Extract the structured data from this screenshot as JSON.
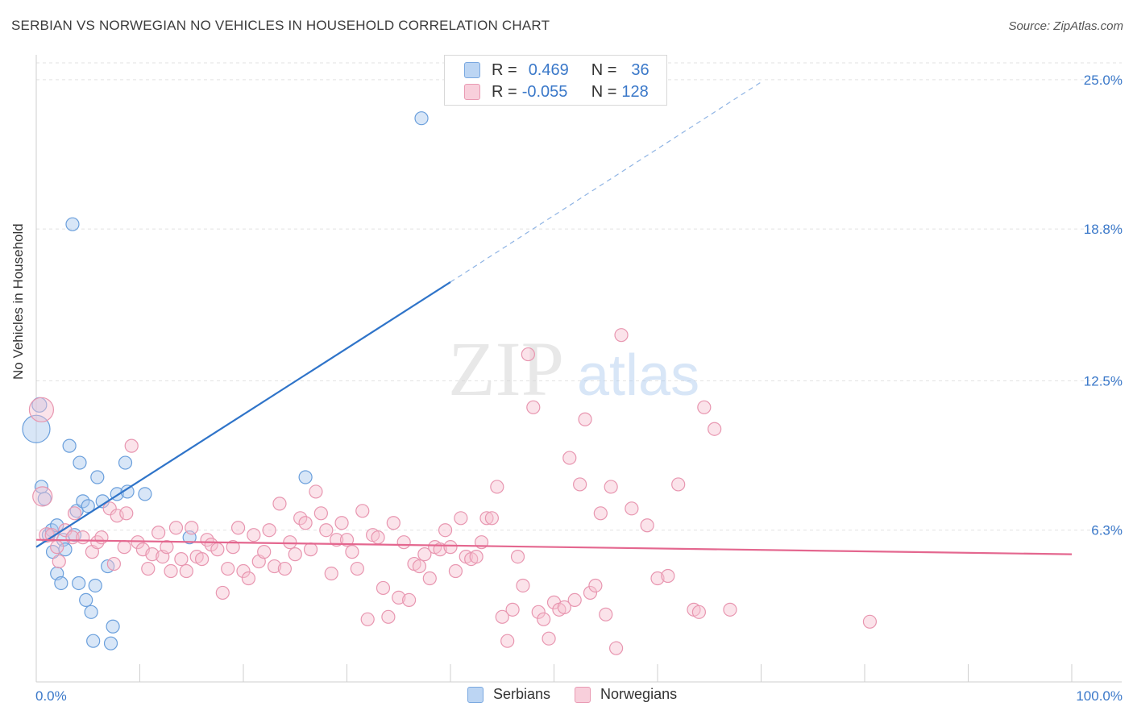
{
  "title": "SERBIAN VS NORWEGIAN NO VEHICLES IN HOUSEHOLD CORRELATION CHART",
  "source": "Source: ZipAtlas.com",
  "watermark": {
    "zip": "ZIP",
    "atlas": "atlas"
  },
  "legend_top": [
    {
      "r_label": "R =",
      "r_value": "0.469",
      "n_label": "N =",
      "n_value": "36",
      "color": "#a9c8ee",
      "border": "#7aa8e0"
    },
    {
      "r_label": "R =",
      "r_value": "-0.055",
      "n_label": "N =",
      "n_value": "128",
      "color": "#f6c0d0",
      "border": "#e99ab3"
    }
  ],
  "legend_bottom": [
    {
      "label": "Serbians",
      "color": "#bcd5f3",
      "border": "#7aa8e0"
    },
    {
      "label": "Norwegians",
      "color": "#f8cfdb",
      "border": "#e99ab3"
    }
  ],
  "chart_data": {
    "type": "scatter",
    "title": "SERBIAN VS NORWEGIAN NO VEHICLES IN HOUSEHOLD CORRELATION CHART",
    "xlabel": "",
    "ylabel": "No Vehicles in Household",
    "xlim": [
      0,
      100
    ],
    "ylim": [
      0,
      25.9
    ],
    "x_tick_labels": [
      {
        "value": 0,
        "label": "0.0%"
      },
      {
        "value": 100,
        "label": "100.0%"
      }
    ],
    "y_tick_labels": [
      {
        "value": 6.3,
        "label": "6.3%"
      },
      {
        "value": 12.5,
        "label": "12.5%"
      },
      {
        "value": 18.8,
        "label": "18.8%"
      },
      {
        "value": 25.0,
        "label": "25.0%"
      }
    ],
    "series": [
      {
        "name": "Serbians",
        "color": "#a9c8ee",
        "stroke": "#6a9fdc",
        "trend": {
          "x0": 0,
          "y0": 5.6,
          "x1": 40,
          "y1": 16.6,
          "dash_to_x": 70,
          "dash_to_y": 24.9,
          "color": "#2f74c9"
        },
        "points": [
          [
            0,
            10.5,
            34
          ],
          [
            0.3,
            11.5,
            18
          ],
          [
            0.5,
            8.1,
            16
          ],
          [
            0.8,
            7.6,
            16
          ],
          [
            1.2,
            6.1,
            16
          ],
          [
            1.5,
            6.3,
            16
          ],
          [
            1.6,
            5.4,
            16
          ],
          [
            2.0,
            6.5,
            16
          ],
          [
            2.0,
            4.5,
            16
          ],
          [
            2.4,
            4.1,
            16
          ],
          [
            2.6,
            5.9,
            16
          ],
          [
            2.8,
            5.5,
            16
          ],
          [
            3.2,
            9.8,
            16
          ],
          [
            3.5,
            19.0,
            16
          ],
          [
            3.7,
            6.1,
            16
          ],
          [
            3.9,
            7.1,
            16
          ],
          [
            4.1,
            4.1,
            16
          ],
          [
            4.2,
            9.1,
            16
          ],
          [
            4.5,
            7.5,
            16
          ],
          [
            4.8,
            3.4,
            16
          ],
          [
            5.0,
            7.3,
            16
          ],
          [
            5.3,
            2.9,
            16
          ],
          [
            5.5,
            1.7,
            16
          ],
          [
            5.7,
            4.0,
            16
          ],
          [
            5.9,
            8.5,
            16
          ],
          [
            6.4,
            7.5,
            16
          ],
          [
            6.9,
            4.8,
            16
          ],
          [
            7.2,
            1.6,
            16
          ],
          [
            7.4,
            2.3,
            16
          ],
          [
            7.8,
            7.8,
            16
          ],
          [
            8.6,
            9.1,
            16
          ],
          [
            8.8,
            7.9,
            16
          ],
          [
            10.5,
            7.8,
            16
          ],
          [
            14.8,
            6.0,
            16
          ],
          [
            26.0,
            8.5,
            16
          ],
          [
            37.2,
            23.4,
            16
          ]
        ]
      },
      {
        "name": "Norwegians",
        "color": "#f6c0d0",
        "stroke": "#e896b0",
        "trend": {
          "x0": 0,
          "y0": 5.9,
          "x1": 100,
          "y1": 5.3,
          "color": "#e4678f"
        },
        "points": [
          [
            0.5,
            11.3,
            30
          ],
          [
            0.6,
            7.7,
            24
          ],
          [
            1.0,
            6.1,
            18
          ],
          [
            1.5,
            6.1,
            16
          ],
          [
            2.0,
            5.6,
            16
          ],
          [
            2.2,
            5.0,
            16
          ],
          [
            2.8,
            6.3,
            16
          ],
          [
            3.5,
            6.0,
            16
          ],
          [
            3.7,
            7.0,
            16
          ],
          [
            4.5,
            6.0,
            16
          ],
          [
            5.4,
            5.4,
            16
          ],
          [
            5.9,
            5.8,
            16
          ],
          [
            6.3,
            6.0,
            16
          ],
          [
            7.1,
            7.2,
            16
          ],
          [
            7.5,
            4.9,
            16
          ],
          [
            7.8,
            6.9,
            16
          ],
          [
            8.5,
            5.6,
            16
          ],
          [
            8.7,
            7.0,
            16
          ],
          [
            9.2,
            9.8,
            16
          ],
          [
            9.8,
            5.8,
            16
          ],
          [
            10.3,
            5.5,
            16
          ],
          [
            10.8,
            4.7,
            16
          ],
          [
            11.2,
            5.3,
            16
          ],
          [
            11.8,
            6.2,
            16
          ],
          [
            12.2,
            5.2,
            16
          ],
          [
            12.6,
            5.6,
            16
          ],
          [
            13.0,
            4.6,
            16
          ],
          [
            13.5,
            6.4,
            16
          ],
          [
            14.0,
            5.1,
            16
          ],
          [
            14.5,
            4.6,
            16
          ],
          [
            15.0,
            6.4,
            16
          ],
          [
            15.5,
            5.2,
            16
          ],
          [
            16.0,
            5.1,
            16
          ],
          [
            16.5,
            5.9,
            16
          ],
          [
            16.9,
            5.7,
            16
          ],
          [
            17.5,
            5.5,
            16
          ],
          [
            18.0,
            3.7,
            16
          ],
          [
            18.5,
            4.7,
            16
          ],
          [
            19.0,
            5.6,
            16
          ],
          [
            19.5,
            6.4,
            16
          ],
          [
            20.0,
            4.6,
            16
          ],
          [
            20.5,
            4.3,
            16
          ],
          [
            21.0,
            6.1,
            16
          ],
          [
            21.5,
            5.0,
            16
          ],
          [
            22.0,
            5.4,
            16
          ],
          [
            22.5,
            6.3,
            16
          ],
          [
            23.0,
            4.8,
            16
          ],
          [
            23.5,
            7.4,
            16
          ],
          [
            24.0,
            4.7,
            16
          ],
          [
            24.5,
            5.8,
            16
          ],
          [
            25.0,
            5.3,
            16
          ],
          [
            25.5,
            6.8,
            16
          ],
          [
            26.0,
            6.6,
            16
          ],
          [
            26.5,
            5.5,
            16
          ],
          [
            27.0,
            7.9,
            16
          ],
          [
            27.5,
            7.0,
            16
          ],
          [
            28.0,
            6.3,
            16
          ],
          [
            28.5,
            4.5,
            16
          ],
          [
            29.0,
            5.9,
            16
          ],
          [
            29.5,
            6.6,
            16
          ],
          [
            30.0,
            5.9,
            16
          ],
          [
            30.5,
            5.4,
            16
          ],
          [
            31.0,
            4.7,
            16
          ],
          [
            31.5,
            7.1,
            16
          ],
          [
            32.0,
            2.6,
            16
          ],
          [
            32.5,
            6.1,
            16
          ],
          [
            33.0,
            6.0,
            16
          ],
          [
            33.5,
            3.9,
            16
          ],
          [
            34.0,
            2.7,
            16
          ],
          [
            34.5,
            6.6,
            16
          ],
          [
            35.0,
            3.5,
            16
          ],
          [
            35.5,
            5.8,
            16
          ],
          [
            36.0,
            3.4,
            16
          ],
          [
            36.5,
            4.9,
            16
          ],
          [
            37.0,
            4.8,
            16
          ],
          [
            37.5,
            5.3,
            16
          ],
          [
            38.0,
            4.3,
            16
          ],
          [
            38.5,
            5.6,
            16
          ],
          [
            39.0,
            5.5,
            16
          ],
          [
            39.5,
            6.3,
            16
          ],
          [
            40.0,
            5.6,
            16
          ],
          [
            40.5,
            4.6,
            16
          ],
          [
            41.0,
            6.8,
            16
          ],
          [
            41.5,
            5.2,
            16
          ],
          [
            42.0,
            5.1,
            16
          ],
          [
            42.5,
            5.2,
            16
          ],
          [
            43.0,
            5.8,
            16
          ],
          [
            43.5,
            6.8,
            16
          ],
          [
            44.0,
            6.8,
            16
          ],
          [
            44.5,
            8.1,
            16
          ],
          [
            45.0,
            2.7,
            16
          ],
          [
            45.5,
            1.7,
            16
          ],
          [
            46.0,
            3.0,
            16
          ],
          [
            46.5,
            5.2,
            16
          ],
          [
            47.0,
            4.0,
            16
          ],
          [
            47.5,
            13.6,
            16
          ],
          [
            48.0,
            11.4,
            16
          ],
          [
            48.5,
            2.9,
            16
          ],
          [
            49.0,
            2.6,
            16
          ],
          [
            49.5,
            1.8,
            16
          ],
          [
            50.0,
            3.3,
            16
          ],
          [
            50.5,
            3.0,
            16
          ],
          [
            51.0,
            3.1,
            16
          ],
          [
            51.5,
            9.3,
            16
          ],
          [
            52.0,
            3.4,
            16
          ],
          [
            52.5,
            8.2,
            16
          ],
          [
            53.0,
            10.9,
            16
          ],
          [
            53.5,
            3.7,
            16
          ],
          [
            54.0,
            4.0,
            16
          ],
          [
            54.5,
            7.0,
            16
          ],
          [
            55.0,
            2.8,
            16
          ],
          [
            55.5,
            8.1,
            16
          ],
          [
            56.0,
            1.4,
            16
          ],
          [
            56.5,
            14.4,
            16
          ],
          [
            57.5,
            7.2,
            16
          ],
          [
            59.0,
            6.5,
            16
          ],
          [
            60.0,
            4.3,
            16
          ],
          [
            61.0,
            4.4,
            16
          ],
          [
            62.0,
            8.2,
            16
          ],
          [
            63.5,
            3.0,
            16
          ],
          [
            64.0,
            2.9,
            16
          ],
          [
            64.5,
            11.4,
            16
          ],
          [
            65.5,
            10.5,
            16
          ],
          [
            67.0,
            3.0,
            16
          ],
          [
            80.5,
            2.5,
            16
          ]
        ]
      }
    ]
  }
}
